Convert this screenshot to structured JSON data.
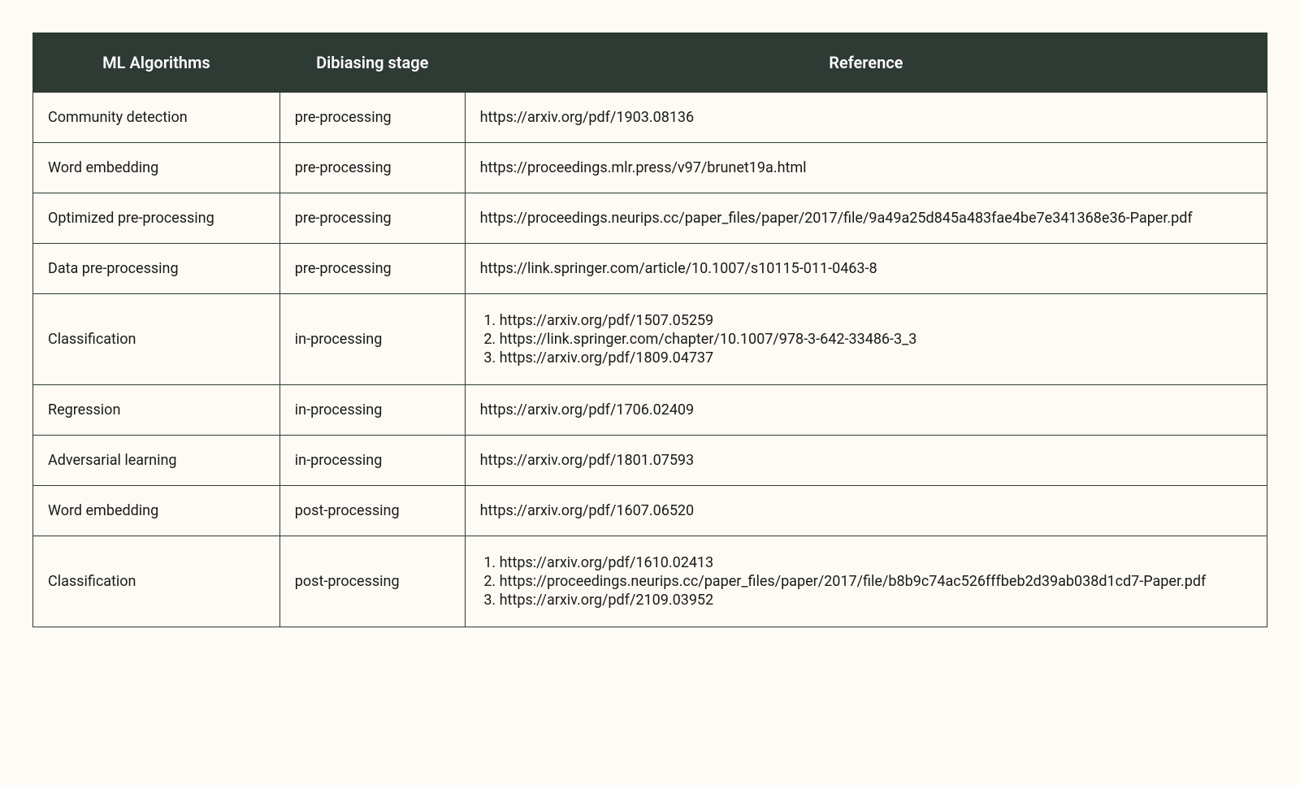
{
  "table": {
    "header_bg": "#2e3a34",
    "header_fg": "#ffffff",
    "body_bg": "#fdfbf4",
    "border_color": "#2e3a34",
    "columns": [
      {
        "label": "ML Algorithms",
        "width_pct": 20
      },
      {
        "label": "Dibiasing stage",
        "width_pct": 15
      },
      {
        "label": "Reference",
        "width_pct": 65
      }
    ],
    "rows": [
      {
        "algo": "Community detection",
        "stage": "pre-processing",
        "refs": [
          "https://arxiv.org/pdf/1903.08136"
        ]
      },
      {
        "algo": "Word embedding",
        "stage": "pre-processing",
        "refs": [
          "https://proceedings.mlr.press/v97/brunet19a.html"
        ]
      },
      {
        "algo": "Optimized pre-processing",
        "stage": "pre-processing",
        "refs": [
          "https://proceedings.neurips.cc/paper_files/paper/2017/file/9a49a25d845a483fae4be7e341368e36-Paper.pdf"
        ]
      },
      {
        "algo": "Data pre-processing",
        "stage": "pre-processing",
        "refs": [
          "https://link.springer.com/article/10.1007/s10115-011-0463-8"
        ]
      },
      {
        "algo": "Classification",
        "stage": "in-processing",
        "refs": [
          "https://arxiv.org/pdf/1507.05259",
          "https://link.springer.com/chapter/10.1007/978-3-642-33486-3_3",
          "https://arxiv.org/pdf/1809.04737"
        ]
      },
      {
        "algo": "Regression",
        "stage": "in-processing",
        "refs": [
          "https://arxiv.org/pdf/1706.02409"
        ]
      },
      {
        "algo": "Adversarial learning",
        "stage": "in-processing",
        "refs": [
          "https://arxiv.org/pdf/1801.07593"
        ]
      },
      {
        "algo": "Word embedding",
        "stage": "post-processing",
        "refs": [
          "https://arxiv.org/pdf/1607.06520"
        ]
      },
      {
        "algo": "Classification",
        "stage": "post-processing",
        "refs": [
          "https://arxiv.org/pdf/1610.02413",
          "https://proceedings.neurips.cc/paper_files/paper/2017/file/b8b9c74ac526fffbeb2d39ab038d1cd7-Paper.pdf",
          "https://arxiv.org/pdf/2109.03952"
        ]
      }
    ]
  }
}
